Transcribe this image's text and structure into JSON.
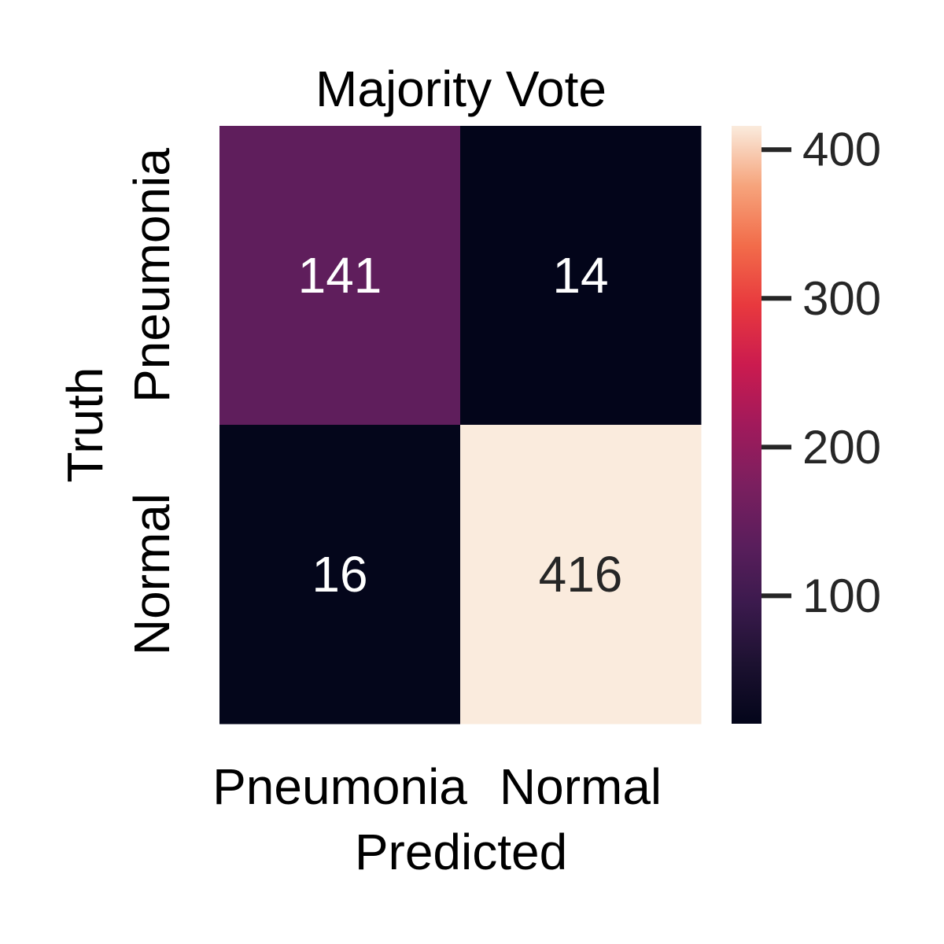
{
  "chart_data": {
    "type": "heatmap",
    "title": "Majority Vote",
    "xlabel": "Predicted",
    "ylabel": "Truth",
    "x_categories": [
      "Pneumonia",
      "Normal"
    ],
    "y_categories": [
      "Pneumonia",
      "Normal"
    ],
    "values": [
      [
        141,
        14
      ],
      [
        16,
        416
      ]
    ],
    "colormap": "rocket",
    "colorbar": {
      "min": 14,
      "max": 416,
      "ticks": [
        100,
        200,
        300,
        400
      ],
      "tick_labels": [
        "100",
        "200",
        "300",
        "400"
      ]
    },
    "colors": {
      "low": "#03051a",
      "high": "#faebdd",
      "annotation_light": "#ffffff",
      "annotation_dark": "#262626",
      "text": "#000000",
      "tick_text": "#262626"
    }
  }
}
